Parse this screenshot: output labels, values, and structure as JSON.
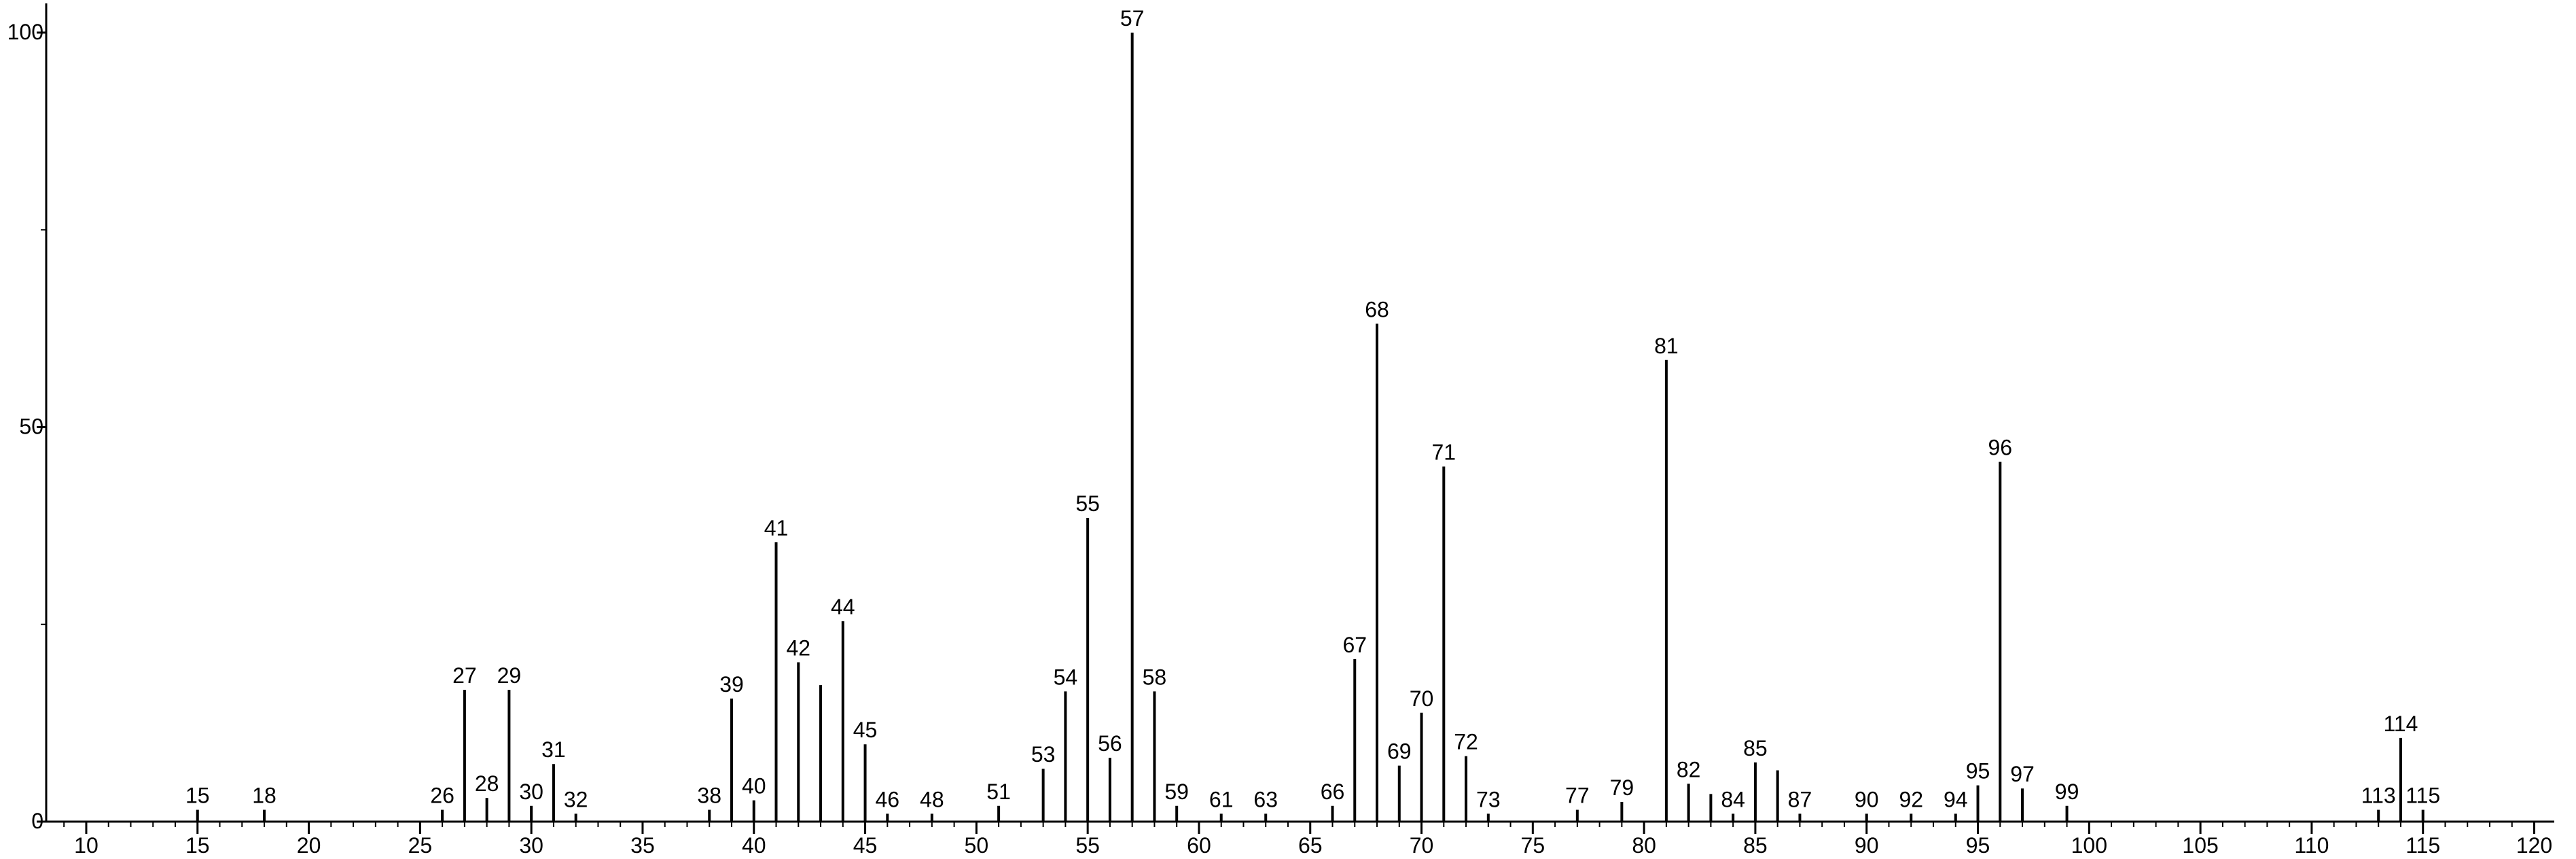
{
  "chart_data": {
    "type": "stem",
    "x": [
      15,
      18,
      26,
      27,
      28,
      29,
      30,
      31,
      32,
      38,
      39,
      40,
      41,
      42,
      43,
      44,
      45,
      46,
      48,
      51,
      53,
      54,
      55,
      56,
      57,
      58,
      59,
      61,
      63,
      66,
      67,
      68,
      69,
      70,
      71,
      72,
      73,
      77,
      79,
      81,
      82,
      83,
      84,
      85,
      86,
      87,
      90,
      92,
      94,
      95,
      96,
      97,
      99,
      113,
      114,
      115
    ],
    "values": [
      1.5,
      1.5,
      1.5,
      16.7,
      3,
      16.7,
      2,
      7.3,
      1,
      1.5,
      15.6,
      2.7,
      35.4,
      20.2,
      17.3,
      25.4,
      9.8,
      1,
      1,
      2,
      6.7,
      16.5,
      38.5,
      8.1,
      100,
      16.5,
      2,
      1,
      1,
      2,
      20.6,
      63.1,
      7.1,
      13.8,
      45,
      8.3,
      1,
      1.5,
      2.5,
      58.5,
      4.8,
      3.5,
      1,
      7.5,
      6.5,
      1,
      1,
      1,
      1,
      4.6,
      45.6,
      4.2,
      2,
      1.5,
      10.6,
      1.5
    ],
    "peak_labels": [
      15,
      18,
      26,
      27,
      28,
      29,
      30,
      31,
      32,
      38,
      39,
      40,
      41,
      42,
      null,
      44,
      45,
      46,
      48,
      51,
      53,
      54,
      55,
      56,
      57,
      58,
      59,
      61,
      63,
      66,
      67,
      68,
      69,
      70,
      71,
      72,
      73,
      77,
      79,
      81,
      82,
      null,
      84,
      85,
      null,
      87,
      90,
      92,
      94,
      95,
      96,
      97,
      99,
      113,
      114,
      115
    ],
    "color": "#000000",
    "xlim": [
      8.2,
      120.9
    ],
    "xticks": [
      10,
      15,
      20,
      25,
      30,
      35,
      40,
      45,
      50,
      55,
      60,
      65,
      70,
      75,
      80,
      85,
      90,
      95,
      100,
      105,
      110,
      115,
      120
    ],
    "xminor_step": 1,
    "ylim": [
      0,
      103.7
    ],
    "yticks": [
      0,
      50,
      100
    ],
    "yminor_ticks": [
      25,
      75
    ]
  }
}
